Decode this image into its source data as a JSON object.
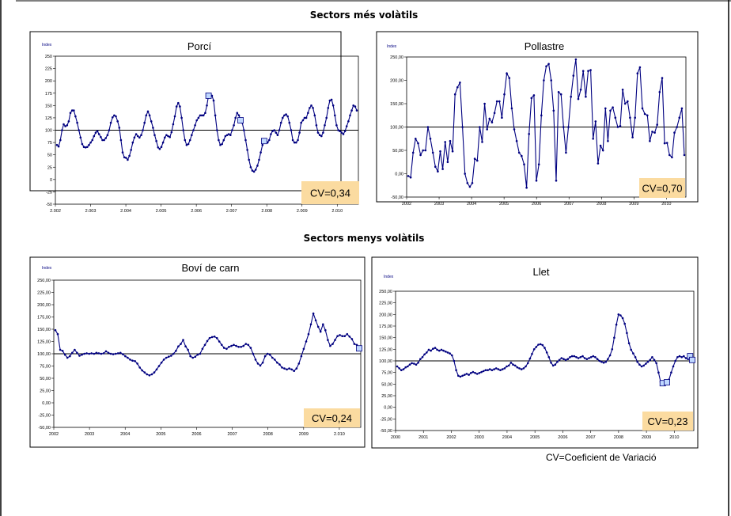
{
  "headings": {
    "top": "Sectors més volàtils",
    "bottom": "Sectors menys volàtils",
    "footnote": "CV=Coeficient de Variació"
  },
  "chart_data": [
    {
      "type": "line",
      "title": "Porcí",
      "ylabel": "Index",
      "ylim": [
        -50,
        250
      ],
      "yticks": [
        "-50",
        "-25",
        "0",
        "25",
        "50",
        "75",
        "100",
        "125",
        "150",
        "175",
        "200",
        "225",
        "250"
      ],
      "xticks": [
        "2.002",
        "2.003",
        "2.004",
        "2.005",
        "2.006",
        "2.007",
        "2.008",
        "2.009",
        "2.010"
      ],
      "reference_line": 100,
      "cv_label": "CV=0,34",
      "x_start": 2002.0,
      "x_end": 2010.6,
      "values": [
        70,
        67,
        80,
        100,
        112,
        108,
        110,
        118,
        135,
        140,
        140,
        128,
        115,
        100,
        85,
        72,
        66,
        65,
        66,
        70,
        75,
        80,
        88,
        95,
        98,
        92,
        86,
        80,
        80,
        84,
        90,
        100,
        115,
        126,
        130,
        128,
        118,
        105,
        80,
        55,
        45,
        44,
        40,
        48,
        60,
        75,
        85,
        92,
        88,
        85,
        90,
        100,
        115,
        130,
        138,
        130,
        118,
        105,
        90,
        78,
        65,
        62,
        66,
        75,
        85,
        90,
        88,
        86,
        96,
        112,
        128,
        148,
        155,
        148,
        125,
        100,
        80,
        70,
        72,
        80,
        90,
        100,
        110,
        120,
        125,
        130,
        130,
        130,
        135,
        150,
        170,
        172,
        170,
        160,
        130,
        100,
        80,
        70,
        72,
        80,
        88,
        90,
        92,
        90,
        100,
        110,
        125,
        135,
        130,
        120,
        115,
        100,
        80,
        60,
        40,
        25,
        18,
        16,
        20,
        28,
        40,
        55,
        70,
        78,
        80,
        75,
        80,
        92,
        98,
        100,
        95,
        90,
        100,
        115,
        125,
        130,
        132,
        128,
        115,
        100,
        80,
        75,
        75,
        80,
        95,
        115,
        120,
        125,
        125,
        135,
        145,
        150,
        145,
        130,
        110,
        95,
        90,
        88,
        95,
        110,
        125,
        145,
        160,
        162,
        150,
        130,
        110,
        100,
        98,
        95,
        92,
        98,
        108,
        118,
        130,
        140,
        150,
        148,
        140
      ]
    },
    {
      "type": "line",
      "title": "Pollastre",
      "ylabel": "Index",
      "ylim": [
        -50,
        250
      ],
      "yticks": [
        "-50,00",
        "0,00",
        "50,00",
        "100,00",
        "150,00",
        "200,00",
        "250,00"
      ],
      "xticks": [
        "2002",
        "2003",
        "2004",
        "2005",
        "2006",
        "2007",
        "2008",
        "2009",
        "2010"
      ],
      "reference_line": 100,
      "cv_label": "CV=0,70",
      "x_start": 2002.0,
      "x_end": 2010.6,
      "values": [
        -5,
        -8,
        45,
        75,
        65,
        40,
        50,
        50,
        100,
        75,
        45,
        15,
        5,
        48,
        10,
        68,
        25,
        70,
        48,
        170,
        185,
        195,
        100,
        0,
        -20,
        -28,
        -20,
        32,
        28,
        100,
        68,
        150,
        95,
        118,
        110,
        130,
        155,
        155,
        120,
        170,
        215,
        205,
        140,
        95,
        70,
        45,
        38,
        20,
        -30,
        85,
        162,
        168,
        -15,
        20,
        125,
        200,
        230,
        235,
        200,
        135,
        -15,
        175,
        170,
        100,
        45,
        100,
        165,
        210,
        245,
        160,
        180,
        220,
        165,
        220,
        222,
        75,
        112,
        22,
        60,
        50,
        140,
        70,
        135,
        142,
        120,
        100,
        102,
        180,
        150,
        155,
        120,
        78,
        120,
        215,
        228,
        140,
        128,
        125,
        70,
        90,
        88,
        105,
        175,
        205,
        65,
        66,
        40,
        35,
        88,
        100,
        120,
        140,
        40
      ]
    },
    {
      "type": "line",
      "title": "Boví de carn",
      "ylabel": "Index",
      "ylim": [
        -50,
        250
      ],
      "yticks": [
        "-50,00",
        "-25,00",
        "0,00",
        "25,00",
        "50,00",
        "75,00",
        "100,00",
        "125,00",
        "150,00",
        "175,00",
        "200,00",
        "225,00",
        "250,00"
      ],
      "xticks": [
        "2002",
        "2003",
        "2004",
        "2005",
        "2006",
        "2007",
        "2008",
        "2009",
        "2.010"
      ],
      "reference_line": 100,
      "cv_label": "CV=0,24",
      "x_start": 2002.0,
      "x_end": 2010.6,
      "values": [
        148,
        140,
        108,
        106,
        98,
        92,
        95,
        102,
        108,
        102,
        96,
        98,
        100,
        101,
        100,
        101,
        100,
        102,
        101,
        100,
        101,
        105,
        102,
        100,
        99,
        100,
        101,
        102,
        99,
        95,
        92,
        88,
        86,
        85,
        80,
        72,
        66,
        62,
        58,
        56,
        58,
        62,
        68,
        75,
        82,
        88,
        92,
        94,
        96,
        100,
        106,
        115,
        120,
        128,
        115,
        108,
        95,
        92,
        94,
        98,
        100,
        110,
        118,
        126,
        132,
        134,
        135,
        132,
        125,
        118,
        112,
        110,
        114,
        116,
        118,
        116,
        114,
        114,
        116,
        120,
        118,
        112,
        100,
        88,
        80,
        76,
        82,
        95,
        100,
        98,
        92,
        88,
        82,
        78,
        72,
        70,
        68,
        70,
        68,
        65,
        70,
        80,
        95,
        110,
        125,
        140,
        160,
        182,
        168,
        155,
        145,
        160,
        148,
        128,
        116,
        120,
        128,
        136,
        138,
        136,
        136,
        140,
        135,
        130,
        120,
        118,
        111
      ]
    },
    {
      "type": "line",
      "title": "Llet",
      "ylabel": "Index",
      "ylim": [
        -50,
        250
      ],
      "yticks": [
        "-50,00",
        "-25,00",
        "0,00",
        "25,00",
        "50,00",
        "75,00",
        "100,00",
        "125,00",
        "150,00",
        "175,00",
        "200,00",
        "225,00",
        "250,00"
      ],
      "xticks": [
        "2000",
        "2001",
        "2002",
        "2003",
        "2004",
        "2005",
        "2006",
        "2007",
        "2008",
        "2009",
        "2010"
      ],
      "reference_line": 100,
      "cv_label": "CV=0,23",
      "x_start": 2000.0,
      "x_end": 2010.7,
      "values": [
        88,
        84,
        80,
        82,
        86,
        88,
        92,
        95,
        94,
        92,
        96,
        104,
        108,
        114,
        118,
        124,
        122,
        126,
        128,
        124,
        122,
        124,
        122,
        120,
        118,
        116,
        112,
        100,
        80,
        68,
        66,
        68,
        70,
        72,
        70,
        74,
        76,
        74,
        72,
        74,
        76,
        78,
        80,
        80,
        82,
        80,
        82,
        84,
        82,
        80,
        82,
        84,
        88,
        90,
        96,
        92,
        90,
        86,
        84,
        82,
        84,
        88,
        95,
        105,
        115,
        125,
        130,
        135,
        136,
        134,
        128,
        118,
        108,
        96,
        90,
        92,
        98,
        102,
        106,
        104,
        102,
        104,
        108,
        110,
        110,
        108,
        106,
        108,
        110,
        106,
        104,
        106,
        108,
        110,
        108,
        104,
        100,
        98,
        96,
        98,
        104,
        112,
        125,
        150,
        178,
        200,
        198,
        192,
        180,
        160,
        138,
        124,
        116,
        108,
        98,
        92,
        88,
        90,
        94,
        98,
        102,
        108,
        102,
        95,
        75,
        55,
        52,
        50,
        54,
        60,
        75,
        88,
        100,
        108,
        110,
        108,
        110,
        106,
        104,
        110,
        102
      ]
    }
  ]
}
